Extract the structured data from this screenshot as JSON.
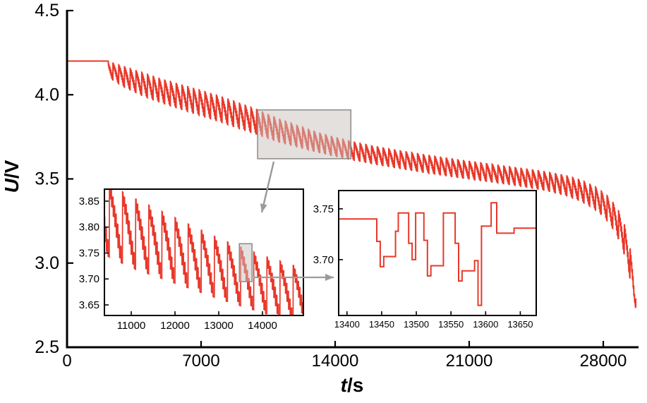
{
  "figure": {
    "background": "#ffffff",
    "series_color": "#e8382a",
    "axis_color": "#000000",
    "annotation_color": "#9b9b9b",
    "highlight_fill": "#c8c2bd",
    "highlight_border": "#8a8a8a"
  },
  "chart_data": [
    {
      "id": "main",
      "type": "line",
      "title": "",
      "ylabel_var": "U",
      "ylabel_unit": "/V",
      "xlabel_var": "t",
      "xlabel_unit": "/s",
      "xlim": [
        0,
        29842
      ],
      "ylim": [
        2.5,
        4.5
      ],
      "x_ticks": [
        "0",
        "7000",
        "14000",
        "21000",
        "28000"
      ],
      "y_ticks": [
        "4.5",
        "4.0",
        "3.5",
        "3.0",
        "2.5"
      ],
      "grid": false,
      "legend": "none",
      "description": "Pulsed discharge voltage curve: flat at 4.20 V until ~2150 s, then sawtooth pulse oscillation declining to ~3.5 V near 26000 s, with a sharp knee dropping to ~2.73 V at ~29700 s",
      "pulse_period_s": 300,
      "pulse_pattern": [
        [
          0.05,
          1.0
        ],
        [
          0.07,
          0.62
        ],
        [
          0.05,
          0.88
        ],
        [
          0.07,
          0.42
        ],
        [
          0.05,
          0.7
        ],
        [
          0.07,
          0.18
        ],
        [
          0.05,
          0.48
        ],
        [
          0.07,
          -0.08
        ],
        [
          0.05,
          0.28
        ],
        [
          0.07,
          -0.35
        ],
        [
          0.05,
          0.02
        ],
        [
          0.07,
          -0.62
        ],
        [
          0.05,
          -0.25
        ],
        [
          0.07,
          -0.88
        ],
        [
          0.06,
          -0.55
        ],
        [
          0.1,
          -1.0
        ]
      ],
      "envelope_t_mid_amp": [
        [
          0,
          4.2,
          0
        ],
        [
          2150,
          4.2,
          0
        ],
        [
          2170,
          4.15,
          0.045
        ],
        [
          3000,
          4.105,
          0.06
        ],
        [
          4000,
          4.06,
          0.068
        ],
        [
          5000,
          4.02,
          0.07
        ],
        [
          6000,
          3.985,
          0.072
        ],
        [
          7000,
          3.95,
          0.074
        ],
        [
          8000,
          3.915,
          0.075
        ],
        [
          9000,
          3.875,
          0.075
        ],
        [
          10000,
          3.835,
          0.072
        ],
        [
          11000,
          3.79,
          0.068
        ],
        [
          12000,
          3.755,
          0.063
        ],
        [
          13000,
          3.72,
          0.058
        ],
        [
          14000,
          3.69,
          0.055
        ],
        [
          15000,
          3.665,
          0.053
        ],
        [
          16000,
          3.642,
          0.052
        ],
        [
          17000,
          3.622,
          0.052
        ],
        [
          18000,
          3.603,
          0.052
        ],
        [
          19000,
          3.585,
          0.052
        ],
        [
          20000,
          3.568,
          0.052
        ],
        [
          21000,
          3.552,
          0.052
        ],
        [
          22000,
          3.537,
          0.052
        ],
        [
          23000,
          3.521,
          0.052
        ],
        [
          24000,
          3.505,
          0.053
        ],
        [
          25000,
          3.487,
          0.055
        ],
        [
          26000,
          3.462,
          0.058
        ],
        [
          26800,
          3.432,
          0.062
        ],
        [
          27500,
          3.392,
          0.066
        ],
        [
          28100,
          3.34,
          0.072
        ],
        [
          28600,
          3.27,
          0.08
        ],
        [
          29000,
          3.18,
          0.088
        ],
        [
          29300,
          3.06,
          0.095
        ],
        [
          29550,
          2.9,
          0.085
        ],
        [
          29700,
          2.76,
          0.03
        ]
      ],
      "highlight_box": {
        "t1": 9950,
        "t2": 14820,
        "v1": 3.62,
        "v2": 3.91
      }
    },
    {
      "id": "inset_left",
      "type": "line",
      "title": "",
      "xlim": [
        10387,
        14935
      ],
      "ylim": [
        3.6296,
        3.8731
      ],
      "x_ticks": [
        "11000",
        "12000",
        "13000",
        "14000"
      ],
      "y_ticks": [
        "3.85",
        "3.80",
        "3.75",
        "3.70",
        "3.65"
      ],
      "grid": false,
      "legend": "none",
      "description": "Zoom of the shaded region of the main curve (same pulsed sawtooth waveform)",
      "highlight_box": {
        "t1": 13470,
        "t2": 13760,
        "v1": 3.695,
        "v2": 3.768
      }
    },
    {
      "id": "inset_right",
      "type": "line",
      "title": "",
      "xlim": [
        13388,
        13673
      ],
      "ylim": [
        3.645,
        3.768
      ],
      "x_ticks": [
        "13400",
        "13450",
        "13500",
        "13550",
        "13600",
        "13650"
      ],
      "y_ticks": [
        "3.75",
        "3.70"
      ],
      "grid": false,
      "legend": "none",
      "description": "Fine zoom showing individual pulse voltage steps",
      "steps_t_v": [
        [
          13388,
          3.74
        ],
        [
          13443,
          3.74
        ],
        [
          13443,
          3.718
        ],
        [
          13448,
          3.718
        ],
        [
          13448,
          3.693
        ],
        [
          13453,
          3.693
        ],
        [
          13453,
          3.703
        ],
        [
          13470,
          3.703
        ],
        [
          13470,
          3.728
        ],
        [
          13474,
          3.728
        ],
        [
          13474,
          3.746
        ],
        [
          13489,
          3.746
        ],
        [
          13489,
          3.716
        ],
        [
          13494,
          3.716
        ],
        [
          13494,
          3.7
        ],
        [
          13499,
          3.7
        ],
        [
          13499,
          3.746
        ],
        [
          13511,
          3.746
        ],
        [
          13511,
          3.719
        ],
        [
          13516,
          3.719
        ],
        [
          13516,
          3.684
        ],
        [
          13521,
          3.684
        ],
        [
          13521,
          3.694
        ],
        [
          13539,
          3.694
        ],
        [
          13539,
          3.746
        ],
        [
          13556,
          3.746
        ],
        [
          13556,
          3.716
        ],
        [
          13561,
          3.716
        ],
        [
          13561,
          3.679
        ],
        [
          13566,
          3.679
        ],
        [
          13566,
          3.689
        ],
        [
          13584,
          3.689
        ],
        [
          13584,
          3.699
        ],
        [
          13589,
          3.699
        ],
        [
          13589,
          3.655
        ],
        [
          13594,
          3.655
        ],
        [
          13594,
          3.733
        ],
        [
          13608,
          3.733
        ],
        [
          13608,
          3.756
        ],
        [
          13616,
          3.756
        ],
        [
          13616,
          3.726
        ],
        [
          13641,
          3.726
        ],
        [
          13641,
          3.731
        ],
        [
          13673,
          3.731
        ]
      ]
    }
  ]
}
